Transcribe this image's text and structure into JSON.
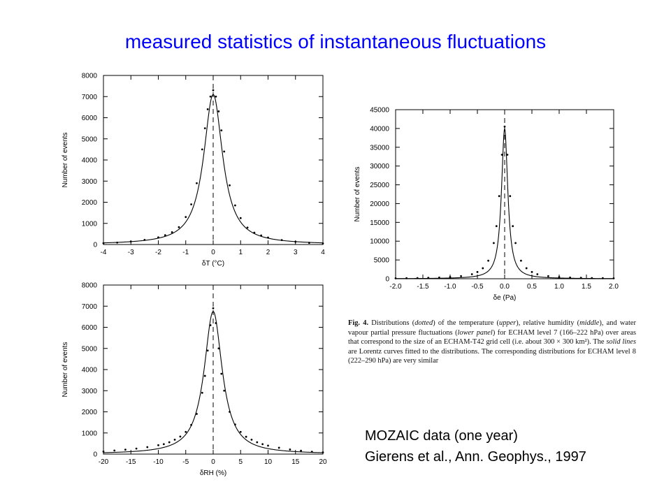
{
  "slide": {
    "title": "measured statistics of instantaneous fluctuations",
    "source_line1": "MOZAIC data (one year)",
    "source_line2": "Gierens et al., Ann. Geophys., 1997"
  },
  "caption": {
    "label": "Fig. 4.",
    "p1": " Distributions (",
    "w_dotted": "dotted",
    "p2": ") of the temperature (",
    "w_upper": "upper",
    "p3": "), relative humidity (",
    "w_middle": "middle",
    "p4": "), and water vapour partial pressure fluctuations (",
    "w_lower": "lower panel",
    "p5": ") for ECHAM level 7 (166–222 hPa) over areas that correspond to the size of an ECHAM-T42 grid cell (i.e. about 300 × 300 km²). The ",
    "w_solid": "solid lines",
    "p6": " are Lorentz curves fitted to the distributions. The corresponding distributions for ECHAM level 8 (222–290 hPa) are very similar"
  },
  "chart_data": [
    {
      "type": "line",
      "panel": "temperature",
      "xlabel": "δT (°C)",
      "ylabel": "Number of events",
      "xlim": [
        -4,
        4
      ],
      "ylim": [
        0,
        8000
      ],
      "xticks": [
        -4,
        -3,
        -2,
        -1,
        0,
        1,
        2,
        3,
        4
      ],
      "yticks": [
        0,
        1000,
        2000,
        3000,
        4000,
        5000,
        6000,
        7000,
        8000
      ],
      "grid": false,
      "marker_x": 0,
      "series": [
        {
          "style": "dotted",
          "x": [
            -4,
            -3.5,
            -3,
            -2.5,
            -2,
            -1.75,
            -1.5,
            -1.25,
            -1,
            -0.8,
            -0.6,
            -0.4,
            -0.3,
            -0.2,
            -0.1,
            0,
            0.1,
            0.2,
            0.3,
            0.4,
            0.6,
            0.8,
            1,
            1.25,
            1.5,
            1.75,
            2,
            2.5,
            3,
            3.5,
            4
          ],
          "y": [
            60,
            90,
            140,
            220,
            340,
            440,
            580,
            820,
            1300,
            1900,
            2900,
            4500,
            5500,
            6400,
            7000,
            7300,
            7000,
            6300,
            5400,
            4400,
            2800,
            1850,
            1250,
            800,
            560,
            430,
            330,
            210,
            130,
            80,
            50
          ]
        },
        {
          "style": "solid",
          "function": "lorentz",
          "amplitude": 7100,
          "center": 0,
          "half_width": 0.42
        }
      ]
    },
    {
      "type": "line",
      "panel": "relative humidity",
      "xlabel": "δRH (%)",
      "ylabel": "Number of events",
      "xlim": [
        -20,
        20
      ],
      "ylim": [
        0,
        8000
      ],
      "xticks": [
        -20,
        -15,
        -10,
        -5,
        0,
        5,
        10,
        15,
        20
      ],
      "yticks": [
        0,
        1000,
        2000,
        3000,
        4000,
        5000,
        6000,
        7000,
        8000
      ],
      "grid": false,
      "marker_x": 0,
      "series": [
        {
          "style": "dotted",
          "x": [
            -20,
            -18,
            -16,
            -14,
            -12,
            -10,
            -9,
            -8,
            -7,
            -6,
            -5,
            -4,
            -3,
            -2,
            -1.5,
            -1,
            -0.5,
            0,
            0.5,
            1,
            1.5,
            2,
            3,
            4,
            5,
            6,
            7,
            8,
            9,
            10,
            12,
            14,
            16,
            18,
            20
          ],
          "y": [
            120,
            170,
            210,
            260,
            330,
            420,
            470,
            560,
            680,
            830,
            1050,
            1380,
            1900,
            2900,
            3700,
            4900,
            6100,
            6900,
            6200,
            5000,
            3800,
            3000,
            2000,
            1400,
            1050,
            820,
            680,
            560,
            470,
            400,
            300,
            220,
            160,
            110,
            80
          ]
        },
        {
          "style": "solid",
          "function": "lorentz",
          "amplitude": 6750,
          "center": 0,
          "half_width": 2.0
        }
      ]
    },
    {
      "type": "line",
      "panel": "water vapour partial pressure",
      "xlabel": "δe (Pa)",
      "ylabel": "Number of events",
      "xlim": [
        -2.0,
        2.0
      ],
      "ylim": [
        0,
        45000
      ],
      "xticks": [
        -2.0,
        -1.5,
        -1.0,
        -0.5,
        0.0,
        0.5,
        1.0,
        1.5,
        2.0
      ],
      "yticks": [
        0,
        5000,
        10000,
        15000,
        20000,
        25000,
        30000,
        35000,
        40000,
        45000
      ],
      "grid": false,
      "marker_x": 0,
      "series": [
        {
          "style": "dotted",
          "x": [
            -2.0,
            -1.8,
            -1.6,
            -1.4,
            -1.2,
            -1.0,
            -0.8,
            -0.6,
            -0.5,
            -0.4,
            -0.3,
            -0.2,
            -0.15,
            -0.1,
            -0.05,
            0,
            0.05,
            0.1,
            0.15,
            0.2,
            0.3,
            0.4,
            0.5,
            0.6,
            0.8,
            1.0,
            1.2,
            1.4,
            1.6,
            1.8,
            2.0
          ],
          "y": [
            120,
            150,
            190,
            240,
            320,
            450,
            700,
            1200,
            1800,
            2800,
            4800,
            9500,
            14000,
            22000,
            33000,
            40500,
            33000,
            22000,
            14000,
            9500,
            4800,
            2800,
            1800,
            1200,
            700,
            450,
            320,
            240,
            190,
            150,
            120
          ]
        },
        {
          "style": "solid",
          "function": "lorentz",
          "amplitude": 40000,
          "center": 0,
          "half_width": 0.07
        }
      ]
    }
  ]
}
